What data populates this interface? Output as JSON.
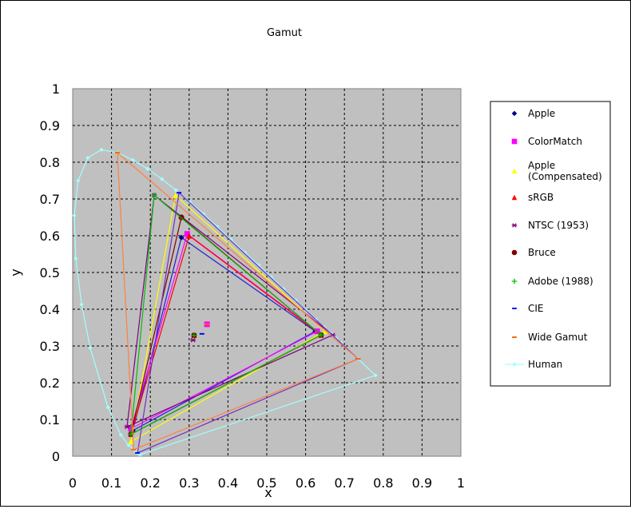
{
  "chart_data": {
    "type": "scatter",
    "title": "Gamut",
    "xlabel": "x",
    "ylabel": "y",
    "xlim": [
      0,
      1
    ],
    "ylim": [
      0,
      1
    ],
    "xticks": [
      "0",
      "0.1",
      "0.2",
      "0.3",
      "0.4",
      "0.5",
      "0.6",
      "0.7",
      "0.8",
      "0.9",
      "1"
    ],
    "yticks": [
      "0",
      "0.1",
      "0.2",
      "0.3",
      "0.4",
      "0.5",
      "0.6",
      "0.7",
      "0.8",
      "0.9",
      "1"
    ],
    "grid": true,
    "plot_background": "#c0c0c0",
    "legend_position": "right",
    "series": [
      {
        "name": "Apple",
        "color": "#000080",
        "marker": "diamond",
        "line_color": "#1f1fd8",
        "primaries": [
          [
            0.625,
            0.34
          ],
          [
            0.28,
            0.595
          ],
          [
            0.155,
            0.07
          ]
        ],
        "white": [
          0.313,
          0.329
        ]
      },
      {
        "name": "ColorMatch",
        "color": "#ff00ff",
        "marker": "square",
        "line_color": "#ff00ff",
        "primaries": [
          [
            0.63,
            0.34
          ],
          [
            0.295,
            0.605
          ],
          [
            0.15,
            0.075
          ]
        ],
        "white": [
          0.346,
          0.359
        ]
      },
      {
        "name": "Apple (Compensated)",
        "color": "#ffff00",
        "marker": "triangle",
        "line_color": "#ffff00",
        "primaries": [
          [
            0.65,
            0.34
          ],
          [
            0.265,
            0.71
          ],
          [
            0.15,
            0.04
          ]
        ],
        "white": [
          0.313,
          0.329
        ]
      },
      {
        "name": "sRGB",
        "color": "#ff0000",
        "marker": "triangle",
        "line_color": "#ff0000",
        "primaries": [
          [
            0.64,
            0.33
          ],
          [
            0.3,
            0.6
          ],
          [
            0.15,
            0.06
          ]
        ],
        "white": [
          0.3127,
          0.329
        ]
      },
      {
        "name": "NTSC (1953)",
        "color": "#800080",
        "marker": "star",
        "line_color": "#800080",
        "primaries": [
          [
            0.67,
            0.33
          ],
          [
            0.21,
            0.71
          ],
          [
            0.14,
            0.08
          ]
        ],
        "white": [
          0.31,
          0.316
        ]
      },
      {
        "name": "Bruce",
        "color": "#800000",
        "marker": "circle",
        "line_color": "#800000",
        "primaries": [
          [
            0.64,
            0.33
          ],
          [
            0.28,
            0.65
          ],
          [
            0.15,
            0.06
          ]
        ],
        "white": [
          0.3127,
          0.329
        ]
      },
      {
        "name": "Adobe (1988)",
        "color": "#00c000",
        "marker": "plus",
        "line_color": "#00c000",
        "primaries": [
          [
            0.64,
            0.33
          ],
          [
            0.21,
            0.71
          ],
          [
            0.15,
            0.06
          ]
        ],
        "white": [
          0.3127,
          0.329
        ]
      },
      {
        "name": "CIE",
        "color": "#0000ff",
        "marker": "dash",
        "line_color": "#7030c0",
        "primaries": [
          [
            0.735,
            0.265
          ],
          [
            0.274,
            0.717
          ],
          [
            0.167,
            0.009
          ]
        ],
        "white": [
          0.333,
          0.333
        ]
      },
      {
        "name": "Wide Gamut",
        "color": "#ff6600",
        "marker": "dash",
        "line_color": "#ff8040",
        "primaries": [
          [
            0.735,
            0.265
          ],
          [
            0.115,
            0.826
          ],
          [
            0.157,
            0.018
          ]
        ],
        "white": [
          0.346,
          0.359
        ]
      }
    ],
    "human_locus": {
      "name": "Human",
      "color": "#a0ffff",
      "points": [
        [
          0.175,
          0.005
        ],
        [
          0.172,
          0.005
        ],
        [
          0.168,
          0.008
        ],
        [
          0.161,
          0.016
        ],
        [
          0.144,
          0.03
        ],
        [
          0.124,
          0.058
        ],
        [
          0.091,
          0.133
        ],
        [
          0.045,
          0.295
        ],
        [
          0.023,
          0.413
        ],
        [
          0.008,
          0.538
        ],
        [
          0.004,
          0.655
        ],
        [
          0.014,
          0.75
        ],
        [
          0.039,
          0.812
        ],
        [
          0.074,
          0.834
        ],
        [
          0.115,
          0.826
        ],
        [
          0.155,
          0.806
        ],
        [
          0.193,
          0.782
        ],
        [
          0.23,
          0.754
        ],
        [
          0.266,
          0.724
        ],
        [
          0.302,
          0.692
        ],
        [
          0.337,
          0.659
        ],
        [
          0.373,
          0.624
        ],
        [
          0.408,
          0.589
        ],
        [
          0.444,
          0.554
        ],
        [
          0.479,
          0.52
        ],
        [
          0.512,
          0.487
        ],
        [
          0.544,
          0.455
        ],
        [
          0.575,
          0.424
        ],
        [
          0.603,
          0.396
        ],
        [
          0.627,
          0.372
        ],
        [
          0.648,
          0.351
        ],
        [
          0.666,
          0.334
        ],
        [
          0.68,
          0.32
        ],
        [
          0.692,
          0.308
        ],
        [
          0.735,
          0.265
        ],
        [
          0.78,
          0.22
        ]
      ]
    }
  }
}
